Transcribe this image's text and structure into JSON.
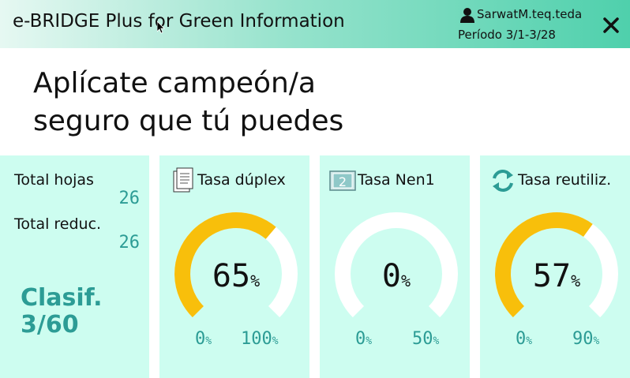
{
  "header": {
    "title": "e-BRIDGE Plus for Green Information",
    "user": "SarwatM.teq.teda",
    "period": "Período 3/1-3/28"
  },
  "slogan": {
    "line1": "Aplícate campeón/a",
    "line2": "seguro que tú puedes"
  },
  "stats": {
    "total_sheets_label": "Total hojas",
    "total_sheets_value": "26",
    "total_reduction_label": "Total reduc.",
    "total_reduction_value": "26",
    "rank_label": "Clasif.",
    "rank_value": "3/60"
  },
  "cards": [
    {
      "title": "Tasa dúplex",
      "icon": "duplex-icon",
      "value": "65",
      "unit": "%",
      "min": "0",
      "max": "100",
      "fraction": 0.65
    },
    {
      "title": "Tasa Nen1",
      "icon": "n-up-icon",
      "icon_text": "2",
      "value": "0",
      "unit": "%",
      "min": "0",
      "max": "50",
      "fraction": 0.0
    },
    {
      "title": "Tasa reutiliz.",
      "icon": "recycle-icon",
      "value": "57",
      "unit": "%",
      "min": "0",
      "max": "90",
      "fraction": 0.633
    }
  ],
  "colors": {
    "accent": "#2c9c95",
    "gauge_fill": "#f8bf0b",
    "gauge_track": "#ffffff",
    "panel": "#cdfdf0"
  }
}
